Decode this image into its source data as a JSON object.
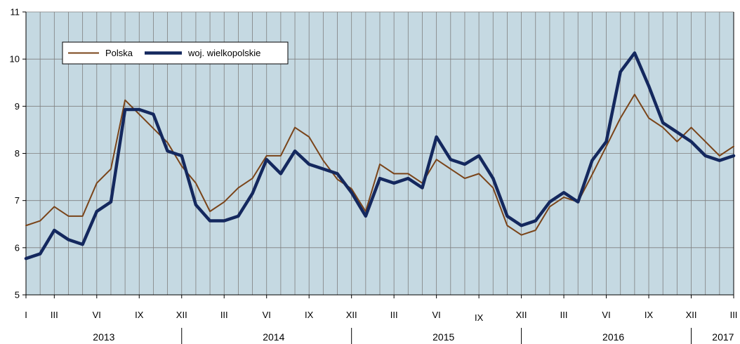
{
  "chart_data": {
    "type": "line",
    "title": "",
    "xlabel": "",
    "ylabel": "",
    "ylim": [
      5,
      11
    ],
    "yticks": [
      "5",
      "6",
      "7",
      "8",
      "9",
      "10",
      "11"
    ],
    "grid": true,
    "legend_position": "top-left",
    "colors": {
      "plot_background": "#c5d9e2",
      "grid": "#7f7f7f",
      "polska": "#7a4419",
      "wielkopolskie": "#14285e"
    },
    "x_tick_labels": [
      "I",
      "III",
      "VI",
      "IX",
      "XII",
      "III",
      "VI",
      "IX",
      "XII",
      "III",
      "VI",
      "IX",
      "XII",
      "III",
      "VI",
      "IX",
      "XII",
      "III"
    ],
    "years": [
      "2013",
      "2014",
      "2015",
      "2016",
      "2017"
    ],
    "categories": [
      "I 2013",
      "II 2013",
      "III 2013",
      "IV 2013",
      "V 2013",
      "VI 2013",
      "VII 2013",
      "VIII 2013",
      "IX 2013",
      "X 2013",
      "XI 2013",
      "XII 2013",
      "I 2014",
      "II 2014",
      "III 2014",
      "IV 2014",
      "V 2014",
      "VI 2014",
      "VII 2014",
      "VIII 2014",
      "IX 2014",
      "X 2014",
      "XI 2014",
      "XII 2014",
      "I 2015",
      "II 2015",
      "III 2015",
      "IV 2015",
      "V 2015",
      "VI 2015",
      "VII 2015",
      "VIII 2015",
      "IX 2015",
      "X 2015",
      "XI 2015",
      "XII 2015",
      "I 2016",
      "II 2016",
      "III 2016",
      "IV 2016",
      "V 2016",
      "VI 2016",
      "VII 2016",
      "VIII 2016",
      "IX 2016",
      "X 2016",
      "XI 2016",
      "XII 2016",
      "I 2017",
      "II 2017",
      "III 2017"
    ],
    "series": [
      {
        "name": "Polska",
        "values": [
          6.47,
          6.57,
          6.87,
          6.67,
          6.67,
          7.37,
          7.67,
          9.13,
          8.83,
          8.53,
          8.23,
          7.73,
          7.37,
          6.77,
          6.97,
          7.27,
          7.47,
          7.95,
          7.95,
          8.55,
          8.35,
          7.85,
          7.45,
          7.25,
          6.77,
          7.77,
          7.57,
          7.57,
          7.37,
          7.87,
          7.67,
          7.47,
          7.57,
          7.27,
          6.47,
          6.27,
          6.37,
          6.87,
          7.07,
          6.97,
          7.55,
          8.15,
          8.75,
          9.25,
          8.75,
          8.55,
          8.25,
          8.55,
          8.25,
          7.95,
          8.15
        ]
      },
      {
        "name": "woj. wielkopolskie",
        "values": [
          5.77,
          5.87,
          6.37,
          6.17,
          6.07,
          6.77,
          6.97,
          8.93,
          8.93,
          8.83,
          8.05,
          7.95,
          6.91,
          6.57,
          6.57,
          6.67,
          7.15,
          7.87,
          7.57,
          8.05,
          7.77,
          7.67,
          7.57,
          7.17,
          6.67,
          7.47,
          7.37,
          7.47,
          7.27,
          8.35,
          7.87,
          7.77,
          7.95,
          7.47,
          6.67,
          6.47,
          6.57,
          6.97,
          7.17,
          6.97,
          7.85,
          8.25,
          9.73,
          10.13,
          9.43,
          8.65,
          8.45,
          8.25,
          7.95,
          7.85,
          7.95
        ]
      }
    ]
  }
}
